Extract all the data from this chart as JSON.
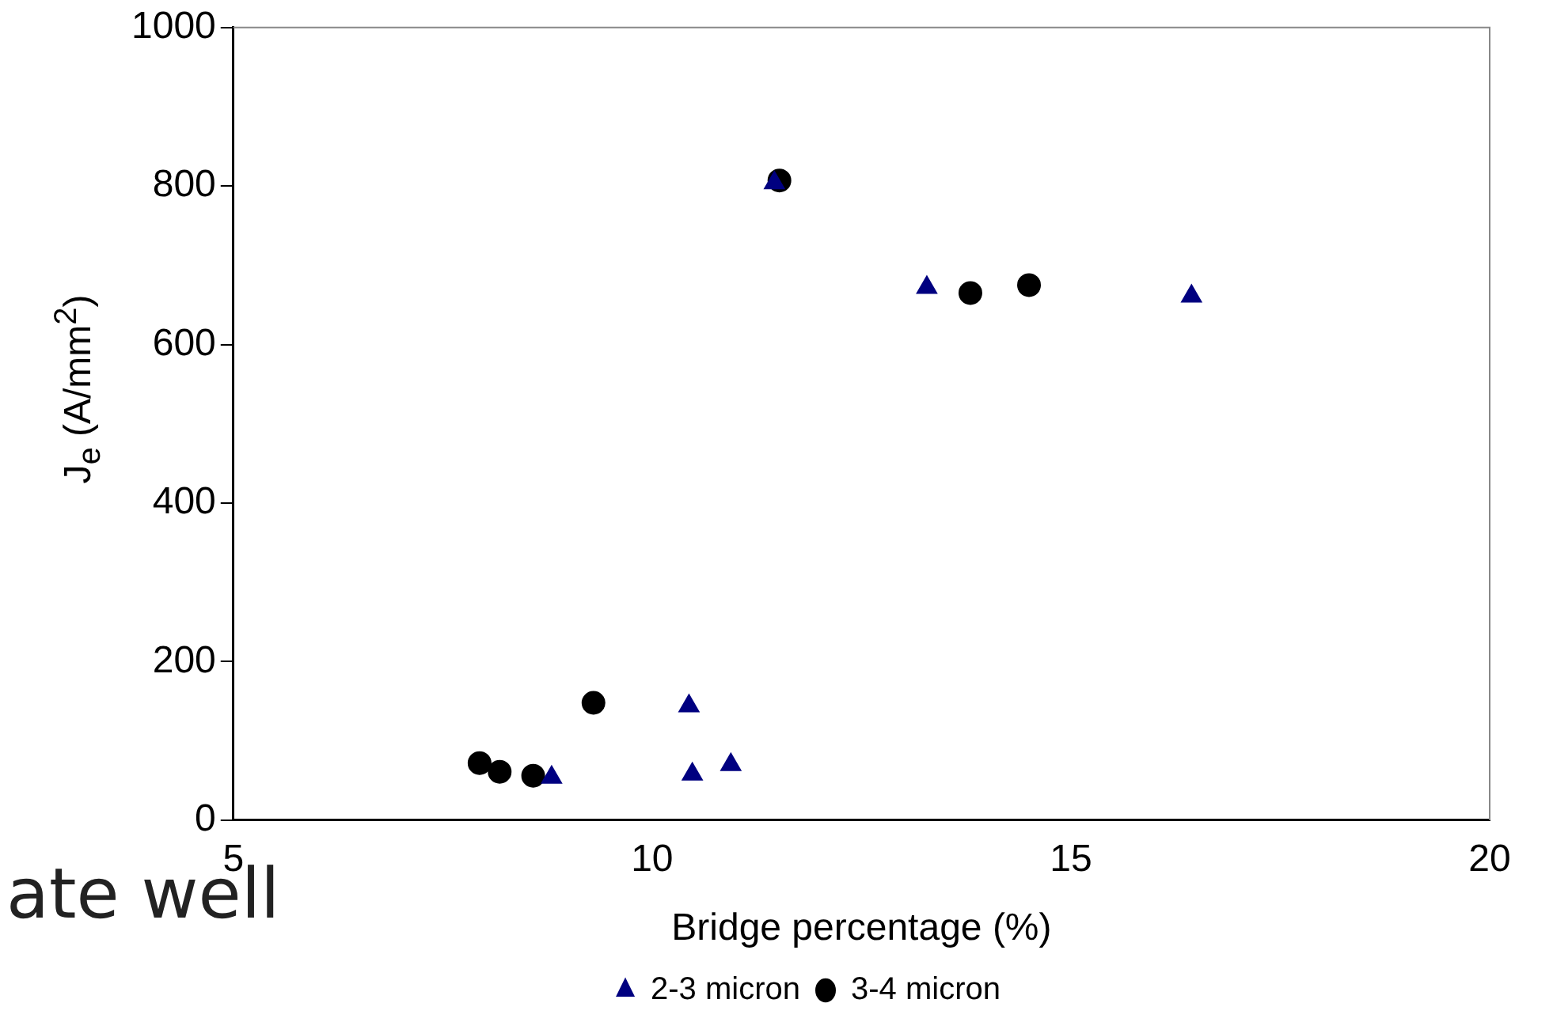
{
  "chart_data": {
    "type": "scatter",
    "xlabel": "Bridge percentage (%)",
    "ylabel": "J$_{e}$ (A/mm$^{2}$)",
    "xlim": [
      5,
      20
    ],
    "xticks": [
      5,
      10,
      15,
      20
    ],
    "ylim": [
      0,
      1000
    ],
    "yticks": [
      0,
      200,
      400,
      600,
      800,
      1000
    ],
    "grid": false,
    "legend": "bottom",
    "annotations": [
      "ate well"
    ],
    "series": [
      {
        "name": "2-3 micron",
        "color": "#000080",
        "marker": "triangle",
        "x": [
          8.8,
          10.44,
          10.48,
          10.94,
          11.46,
          13.28,
          16.44
        ],
        "values": [
          54,
          144,
          58,
          70,
          804,
          672,
          661
        ]
      },
      {
        "name": "3-4 micron",
        "color": "#000000",
        "marker": "circle",
        "x": [
          7.94,
          8.18,
          8.58,
          9.3,
          11.52,
          13.8,
          14.5
        ],
        "values": [
          72,
          61,
          56,
          148,
          807,
          665,
          675
        ]
      }
    ]
  }
}
